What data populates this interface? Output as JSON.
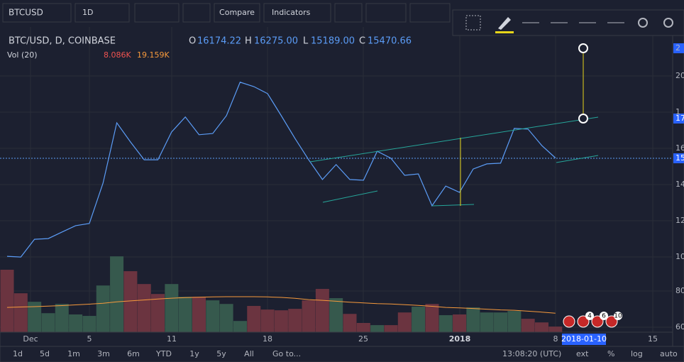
{
  "toolbar": {
    "symbol": "BTCUSD",
    "interval": "1D",
    "compare": "Compare",
    "indicators": "Indicators"
  },
  "legend": {
    "title": "BTC/USD, D, COINBASE",
    "open_label": "O",
    "open": "16174.22",
    "high_label": "H",
    "high": "16275.00",
    "low_label": "L",
    "low": "15189.00",
    "close_label": "C",
    "close": "15470.66",
    "volume_title": "Vol (20)",
    "volume_value": "8.086K",
    "volume_ma": "19.159K"
  },
  "price_axis_labels": [
    "2",
    "20",
    "1",
    "17",
    "16",
    "15",
    "14",
    "12",
    "10",
    "80",
    "60"
  ],
  "time_axis_labels": [
    "Dec",
    "5",
    "11",
    "18",
    "25",
    "2018",
    "8",
    "15"
  ],
  "time_cursor": "2018-01-10",
  "event_markers": [
    "4",
    "6",
    "10"
  ],
  "bottom_bar": {
    "ranges": [
      "1d",
      "5d",
      "1m",
      "3m",
      "6m",
      "YTD",
      "1y",
      "5y",
      "All"
    ],
    "goto": "Go to...",
    "clock": "13:08:20 (UTC)",
    "options": [
      "ext",
      "%",
      "log",
      "auto"
    ]
  },
  "chart_data": {
    "type": "line",
    "price": {
      "color": "#5b9cf6",
      "ylim": [
        5850,
        22700
      ],
      "values": [
        10040,
        10000,
        10980,
        11020,
        11380,
        11730,
        11850,
        14080,
        17410,
        16350,
        15370,
        15370,
        16900,
        17730,
        16750,
        16820,
        17800,
        19650,
        19410,
        19020,
        17800,
        16550,
        15370,
        14280,
        15100,
        14280,
        14240,
        15840,
        15450,
        14510,
        14590,
        12830,
        13920,
        13570,
        14860,
        15140,
        15180,
        17100,
        17060,
        16160,
        15470
      ]
    },
    "volume": {
      "up_color": "#36594d",
      "down_color": "#6b3440",
      "ylim": [
        57.3,
        225.9
      ],
      "values": [
        91.8,
        78.8,
        74.1,
        67.8,
        72.9,
        67.1,
        66.3,
        83.1,
        99.2,
        91.0,
        83.9,
        78.4,
        83.9,
        76.9,
        76.9,
        74.9,
        72.9,
        63.5,
        71.8,
        69.8,
        69.4,
        70.2,
        74.9,
        81.2,
        76.1,
        67.4,
        62.4,
        61.2,
        61.2,
        68.2,
        71.4,
        72.9,
        66.7,
        67.1,
        71.0,
        68.2,
        68.2,
        69.0,
        64.7,
        62.7,
        60.4
      ]
    },
    "volume_ma": {
      "color": "#f79a3c",
      "values": [
        71.0,
        71.2,
        71.4,
        71.7,
        72.0,
        72.4,
        72.8,
        73.3,
        74.1,
        74.6,
        75.1,
        75.6,
        76.1,
        76.4,
        76.6,
        76.8,
        76.9,
        76.9,
        76.9,
        76.8,
        76.5,
        76.0,
        75.3,
        74.9,
        74.4,
        73.9,
        73.5,
        73.1,
        72.9,
        72.5,
        72.1,
        71.6,
        71.0,
        70.7,
        70.4,
        70.0,
        69.6,
        69.4,
        68.9,
        68.4,
        67.8
      ]
    }
  }
}
